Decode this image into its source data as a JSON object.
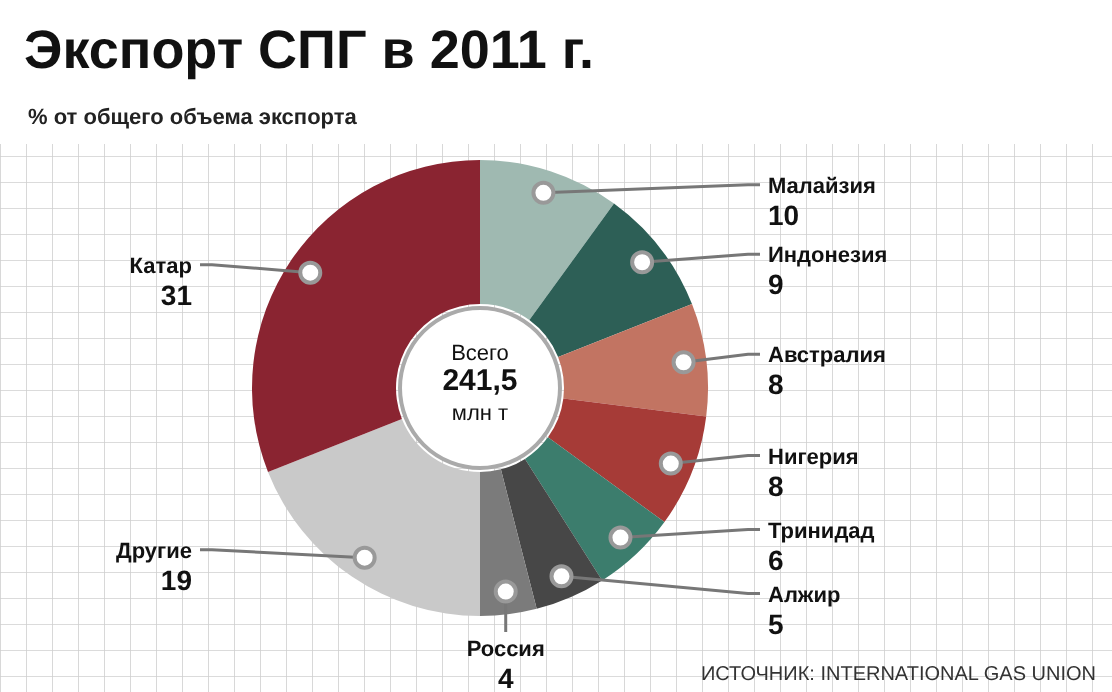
{
  "chart_data": {
    "type": "donut",
    "title": "Экспорт СПГ в 2011 г.",
    "subtitle": "% от общего объема экспорта",
    "categories": [
      "Малайзия",
      "Индонезия",
      "Австралия",
      "Нигерия",
      "Тринидад",
      "Алжир",
      "Россия",
      "Другие",
      "Катар"
    ],
    "values": [
      10,
      9,
      8,
      8,
      6,
      5,
      4,
      19,
      31
    ],
    "colors": [
      "#9fb9b1",
      "#2d5f56",
      "#c27462",
      "#a63b37",
      "#3c7d6d",
      "#474747",
      "#7b7b7b",
      "#c9c9c9",
      "#8a2431"
    ],
    "data_labels": true,
    "annotations": [
      "Всего\n241,5\nмлн т",
      "ИСТОЧНИК: INTERNATIONAL GAS UNION"
    ]
  }
}
